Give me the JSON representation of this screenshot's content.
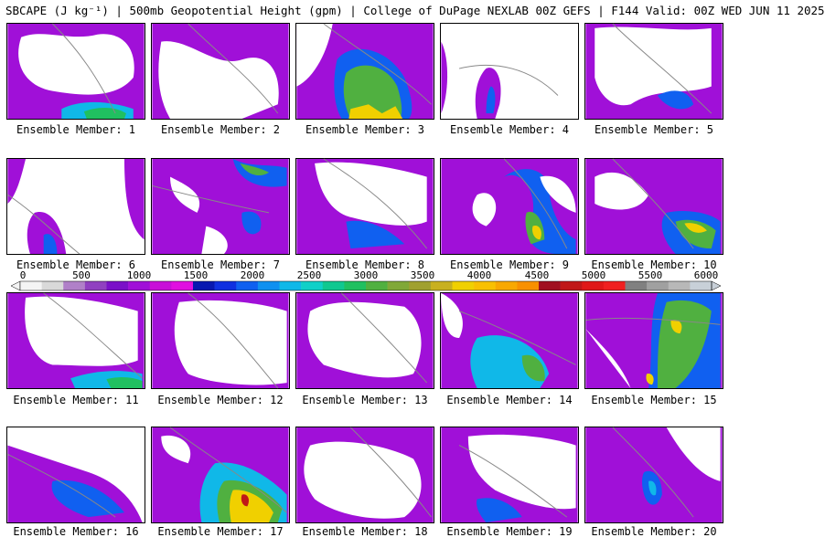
{
  "header": {
    "title": "SBCAPE (J kg⁻¹) | 500mb Geopotential Height (gpm) | College of DuPage NEXLAB 00Z GEFS | F144 Valid: 00Z WED JUN 11 2025"
  },
  "colorbar": {
    "ticks": [
      "0",
      "500",
      "1000",
      "1500",
      "2000",
      "2500",
      "3000",
      "3500",
      "4000",
      "4500",
      "5000",
      "5500",
      "6000"
    ],
    "colors": [
      "#f4f4f4",
      "#d9d9d9",
      "#b080c8",
      "#9040c0",
      "#7a10c8",
      "#a010d8",
      "#c810d8",
      "#e010e0",
      "#0818b0",
      "#1030e0",
      "#1060f0",
      "#1090f0",
      "#10b8e8",
      "#10d0c8",
      "#10c890",
      "#20c060",
      "#50b040",
      "#80a838",
      "#a0a030",
      "#c8b020",
      "#f0d000",
      "#f8c000",
      "#f8a800",
      "#f89000",
      "#a01020",
      "#c01818",
      "#e01818",
      "#f02020",
      "#808080",
      "#a0a0a0",
      "#b8b8b8",
      "#c8d0d8"
    ]
  },
  "panels": [
    {
      "label": "Ensemble Member: 1"
    },
    {
      "label": "Ensemble Member: 2"
    },
    {
      "label": "Ensemble Member: 3"
    },
    {
      "label": "Ensemble Member: 4"
    },
    {
      "label": "Ensemble Member: 5"
    },
    {
      "label": "Ensemble Member: 6"
    },
    {
      "label": "Ensemble Member: 7"
    },
    {
      "label": "Ensemble Member: 8"
    },
    {
      "label": "Ensemble Member: 9"
    },
    {
      "label": "Ensemble Member: 10"
    },
    {
      "label": "Ensemble Member: 11"
    },
    {
      "label": "Ensemble Member: 12"
    },
    {
      "label": "Ensemble Member: 13"
    },
    {
      "label": "Ensemble Member: 14"
    },
    {
      "label": "Ensemble Member: 15"
    },
    {
      "label": "Ensemble Member: 16"
    },
    {
      "label": "Ensemble Member: 17"
    },
    {
      "label": "Ensemble Member: 18"
    },
    {
      "label": "Ensemble Member: 19"
    },
    {
      "label": "Ensemble Member: 20"
    }
  ]
}
